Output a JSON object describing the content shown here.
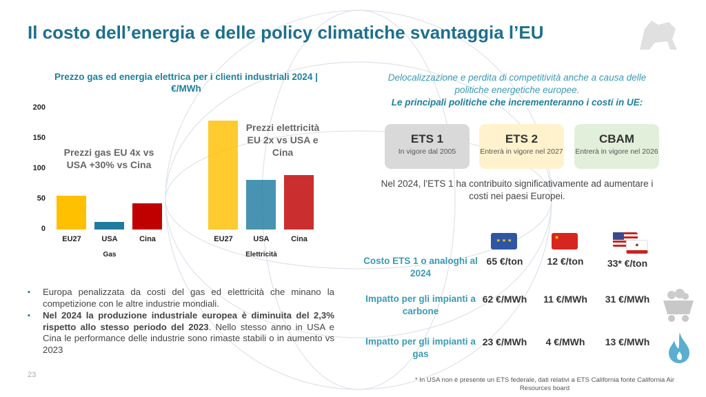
{
  "title": "Il costo dell’energia e delle policy climatiche svantaggia l’EU",
  "page_number": "23",
  "chart_data": {
    "type": "bar",
    "title": "Prezzo gas ed energia elettrica per i clienti industriali 2024 | €/MWh",
    "ylim": [
      0,
      200
    ],
    "yticks": [
      "0",
      "50",
      "100",
      "150",
      "200"
    ],
    "groups": [
      {
        "name": "Gas",
        "categories": [
          "EU27",
          "USA",
          "Cina"
        ],
        "values": [
          56,
          13,
          43
        ]
      },
      {
        "name": "Elettricità",
        "categories": [
          "EU27",
          "USA",
          "Cina"
        ],
        "values": [
          180,
          82,
          90
        ]
      }
    ],
    "colors": [
      "#ffc000",
      "#1f7ba0",
      "#c00000"
    ],
    "annotations": [
      "Prezzi gas EU 4x vs USA +30% vs Cina",
      "Prezzi elettricità EU 2x vs USA e Cina"
    ]
  },
  "bullets": [
    {
      "bold": "",
      "text": "Europa penalizzata da costi del gas ed elettricità che minano la competizione con le altre industrie mondiali."
    },
    {
      "bold": "Nel 2024 la produzione industriale europea è diminuita del 2,3% rispetto allo stesso periodo del 2023",
      "text": ". Nello stesso anno in USA e Cina le performance delle industrie sono rimaste stabili o in aumento vs 2023"
    }
  ],
  "right": {
    "intro": "Delocalizzazione e perdita di competitività anche a causa delle politiche energetiche europee.",
    "intro_bold": "Le principali politiche che incrementeranno i costi in UE:",
    "policies": [
      {
        "name": "ETS 1",
        "sub": "In vigore dal 2005",
        "color": "#d9d9d9"
      },
      {
        "name": "ETS 2",
        "sub": "Entrerà in vigore nel 2027",
        "color": "#fff2cc"
      },
      {
        "name": "CBAM",
        "sub": "Entrerà in vigore nel 2026",
        "color": "#e2efda"
      }
    ],
    "note": "Nel 2024, l’ETS 1 ha contribuito significativamente ad aumentare i costi nei paesi Europei.",
    "columns": [
      "eu-flag-icon",
      "china-flag-icon",
      "usa-california-flag-icon"
    ],
    "rows": [
      {
        "label": "Costo ETS 1 o analoghi al 2024",
        "values": [
          "65 €/ton",
          "12 €/ton",
          "33* €/ton"
        ]
      },
      {
        "label": "Impatto per gli impianti a carbone",
        "values": [
          "62 €/MWh",
          "11 €/MWh",
          "31 €/MWh"
        ],
        "icon": "coal-cart-icon"
      },
      {
        "label": "Impatto per gli impianti a gas",
        "values": [
          "23 €/MWh",
          "4 €/MWh",
          "13 €/MWh"
        ],
        "icon": "gas-flame-icon"
      }
    ],
    "footnote": "* In USA non è presente un ETS federale, dati relativi a ETS California fonte California Air Resources board"
  }
}
